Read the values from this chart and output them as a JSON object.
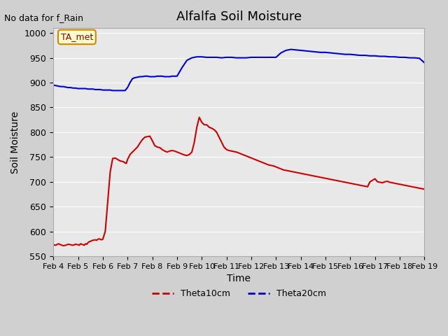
{
  "title": "Alfalfa Soil Moisture",
  "xlabel": "Time",
  "ylabel": "Soil Moisture",
  "top_left_text": "No data for f_Rain",
  "annotation_text": "TA_met",
  "ylim": [
    550,
    1010
  ],
  "yticks": [
    550,
    600,
    650,
    700,
    750,
    800,
    850,
    900,
    950,
    1000
  ],
  "background_color": "#e8e8e8",
  "plot_bg_color": "#e8e8e8",
  "line1_color": "#cc0000",
  "line2_color": "#0000cc",
  "legend_line1": "Theta10cm",
  "legend_line2": "Theta20cm",
  "xtick_labels": [
    "Feb 4",
    "Feb 5",
    "Feb 6",
    "Feb 7",
    "Feb 8",
    "Feb 9",
    "Feb 10",
    "Feb 11",
    "Feb 12",
    "Feb 13",
    "Feb 14",
    "Feb 15",
    "Feb 16",
    "Feb 17",
    "Feb 18",
    "Feb 19"
  ],
  "theta10_x": [
    0,
    0.1,
    0.2,
    0.3,
    0.4,
    0.5,
    0.6,
    0.7,
    0.8,
    0.9,
    1.0,
    1.05,
    1.1,
    1.15,
    1.2,
    1.25,
    1.3,
    1.35,
    1.4,
    1.45,
    1.5,
    1.6,
    1.7,
    1.75,
    1.8,
    1.85,
    1.9,
    1.95,
    2.0,
    2.1,
    2.2,
    2.3,
    2.4,
    2.5,
    2.6,
    2.7,
    2.8,
    2.85,
    2.9,
    2.95,
    3.0,
    3.1,
    3.2,
    3.3,
    3.4,
    3.5,
    3.6,
    3.7,
    3.8,
    3.9,
    4.0,
    4.1,
    4.2,
    4.3,
    4.4,
    4.5,
    4.6,
    4.7,
    4.8,
    4.9,
    5.0,
    5.1,
    5.2,
    5.3,
    5.4,
    5.5,
    5.6,
    5.7,
    5.8,
    5.9,
    6.0,
    6.1,
    6.2,
    6.3,
    6.4,
    6.5,
    6.6,
    6.7,
    6.8,
    6.9,
    7.0,
    7.1,
    7.2,
    7.3,
    7.4,
    7.5,
    7.6,
    7.7,
    7.8,
    7.9,
    8.0,
    8.1,
    8.2,
    8.3,
    8.4,
    8.5,
    8.6,
    8.7,
    8.8,
    8.9,
    9.0,
    9.1,
    9.2,
    9.3,
    9.4,
    9.5,
    9.6,
    9.7,
    9.8,
    9.9,
    10.0,
    10.1,
    10.2,
    10.3,
    10.4,
    10.5,
    10.6,
    10.7,
    10.8,
    10.9,
    11.0,
    11.1,
    11.2,
    11.3,
    11.4,
    11.5,
    11.6,
    11.7,
    11.8,
    11.9,
    12.0,
    12.1,
    12.2,
    12.3,
    12.4,
    12.5,
    12.6,
    12.7,
    12.8,
    12.9,
    13.0,
    13.1,
    13.2,
    13.3,
    13.4,
    13.5,
    13.6,
    13.7,
    13.8,
    13.9,
    14.0,
    14.1,
    14.2,
    14.3,
    14.4,
    14.5,
    14.6,
    14.7,
    14.8,
    14.9,
    15.0
  ],
  "theta10_y": [
    573,
    572,
    575,
    573,
    571,
    572,
    574,
    573,
    572,
    574,
    573,
    572,
    575,
    574,
    573,
    572,
    575,
    574,
    577,
    579,
    580,
    582,
    583,
    582,
    584,
    585,
    584,
    583,
    584,
    600,
    660,
    720,
    747,
    748,
    745,
    742,
    741,
    740,
    738,
    737,
    745,
    755,
    760,
    765,
    770,
    778,
    785,
    790,
    791,
    792,
    783,
    773,
    770,
    769,
    765,
    762,
    760,
    762,
    763,
    762,
    760,
    758,
    756,
    754,
    753,
    755,
    760,
    780,
    810,
    830,
    820,
    815,
    815,
    810,
    808,
    805,
    800,
    790,
    780,
    770,
    765,
    763,
    762,
    761,
    760,
    758,
    756,
    754,
    752,
    750,
    748,
    746,
    744,
    742,
    740,
    738,
    736,
    734,
    733,
    732,
    730,
    728,
    726,
    724,
    723,
    722,
    721,
    720,
    719,
    718,
    717,
    716,
    715,
    714,
    713,
    712,
    711,
    710,
    709,
    708,
    707,
    706,
    705,
    704,
    703,
    702,
    701,
    700,
    699,
    698,
    697,
    696,
    695,
    694,
    693,
    692,
    691,
    690,
    700,
    703,
    706,
    700,
    699,
    698,
    700,
    701,
    699,
    698,
    697,
    696,
    695,
    694,
    693,
    692,
    691,
    690,
    689,
    688,
    687,
    686,
    685
  ],
  "theta20_x": [
    0,
    0.1,
    0.2,
    0.3,
    0.4,
    0.5,
    0.6,
    0.7,
    0.8,
    0.9,
    1.0,
    1.1,
    1.2,
    1.3,
    1.4,
    1.5,
    1.6,
    1.7,
    1.8,
    1.9,
    2.0,
    2.1,
    2.2,
    2.3,
    2.4,
    2.5,
    2.6,
    2.7,
    2.8,
    2.9,
    3.0,
    3.1,
    3.2,
    3.3,
    3.4,
    3.5,
    3.6,
    3.7,
    3.8,
    3.9,
    4.0,
    4.1,
    4.2,
    4.3,
    4.4,
    4.5,
    4.6,
    4.7,
    4.8,
    4.9,
    5.0,
    5.2,
    5.4,
    5.6,
    5.8,
    6.0,
    6.2,
    6.4,
    6.6,
    6.8,
    7.0,
    7.2,
    7.4,
    7.6,
    7.8,
    8.0,
    8.2,
    8.4,
    8.6,
    8.8,
    9.0,
    9.2,
    9.4,
    9.6,
    9.8,
    10.0,
    10.2,
    10.4,
    10.6,
    10.8,
    11.0,
    11.2,
    11.4,
    11.6,
    11.8,
    12.0,
    12.2,
    12.4,
    12.6,
    12.8,
    13.0,
    13.2,
    13.4,
    13.6,
    13.8,
    14.0,
    14.2,
    14.4,
    14.6,
    14.8,
    15.0
  ],
  "theta20_y": [
    895,
    894,
    893,
    892,
    892,
    891,
    890,
    890,
    889,
    889,
    888,
    888,
    888,
    888,
    887,
    887,
    887,
    886,
    886,
    886,
    885,
    885,
    885,
    885,
    884,
    884,
    884,
    884,
    884,
    884,
    890,
    900,
    908,
    910,
    911,
    912,
    912,
    913,
    913,
    912,
    912,
    912,
    913,
    913,
    913,
    912,
    912,
    912,
    913,
    913,
    913,
    930,
    945,
    950,
    952,
    952,
    951,
    951,
    951,
    950,
    951,
    951,
    950,
    950,
    950,
    951,
    951,
    951,
    951,
    951,
    951,
    960,
    965,
    967,
    966,
    965,
    964,
    963,
    962,
    961,
    961,
    960,
    959,
    958,
    957,
    957,
    956,
    955,
    955,
    954,
    954,
    953,
    953,
    952,
    952,
    951,
    951,
    950,
    950,
    949,
    940
  ]
}
